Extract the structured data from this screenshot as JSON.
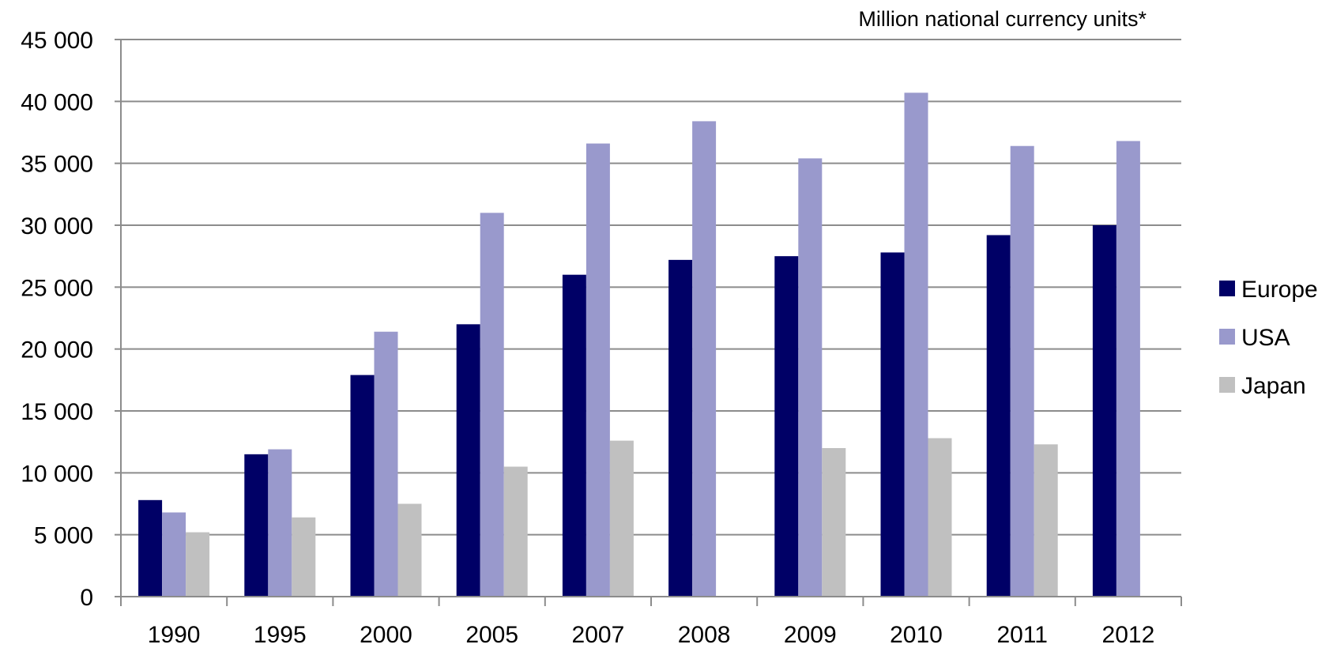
{
  "chart_data": {
    "type": "bar",
    "unit_label": "Million national currency units*",
    "categories": [
      "1990",
      "1995",
      "2000",
      "2005",
      "2007",
      "2008",
      "2009",
      "2010",
      "2011",
      "2012"
    ],
    "series": [
      {
        "name": "Europe",
        "color": "#000066",
        "values": [
          7800,
          11500,
          17900,
          22000,
          26000,
          27200,
          27500,
          27800,
          29200,
          30000
        ]
      },
      {
        "name": "USA",
        "color": "#9999CC",
        "values": [
          6800,
          11900,
          21400,
          31000,
          36600,
          38400,
          35400,
          40700,
          36400,
          36800
        ]
      },
      {
        "name": "Japan",
        "color": "#C0C0C0",
        "values": [
          5200,
          6400,
          7500,
          10500,
          12600,
          null,
          12000,
          12800,
          12300,
          null
        ]
      }
    ],
    "y_ticks": [
      "0",
      "5 000",
      "10 000",
      "15 000",
      "20 000",
      "25 000",
      "30 000",
      "35 000",
      "40 000",
      "45 000"
    ],
    "ylim": [
      0,
      45000
    ],
    "grid": true,
    "legend_position": "right"
  }
}
